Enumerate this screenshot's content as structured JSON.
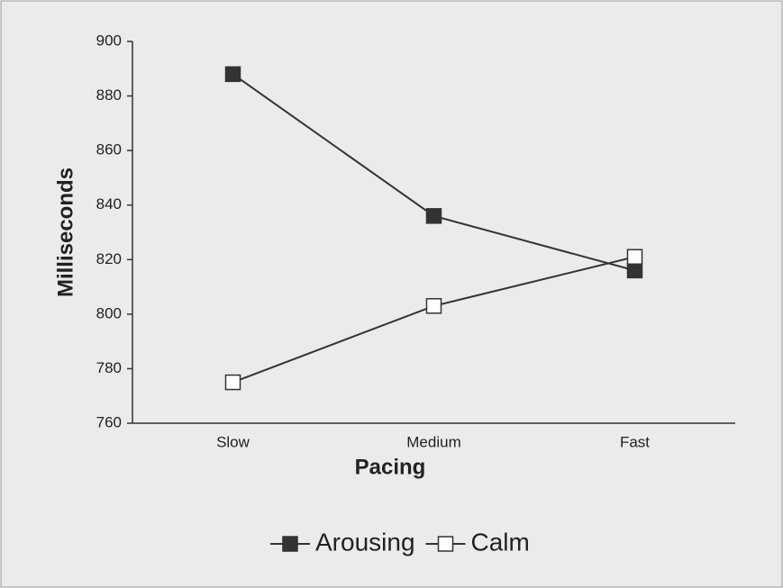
{
  "chart_data": {
    "type": "line",
    "xlabel": "Pacing",
    "ylabel": "Milliseconds",
    "categories": [
      "Slow",
      "Medium",
      "Fast"
    ],
    "series": [
      {
        "name": "Arousing",
        "color": "#333333",
        "marker": "filled",
        "values": [
          888,
          836,
          816
        ]
      },
      {
        "name": "Calm",
        "color": "#333333",
        "marker": "hollow",
        "values": [
          775,
          803,
          821
        ]
      }
    ],
    "ylim": [
      760,
      900
    ],
    "yticks": [
      760,
      780,
      800,
      820,
      840,
      860,
      880,
      900
    ],
    "grid": false,
    "legend": "bottom"
  }
}
